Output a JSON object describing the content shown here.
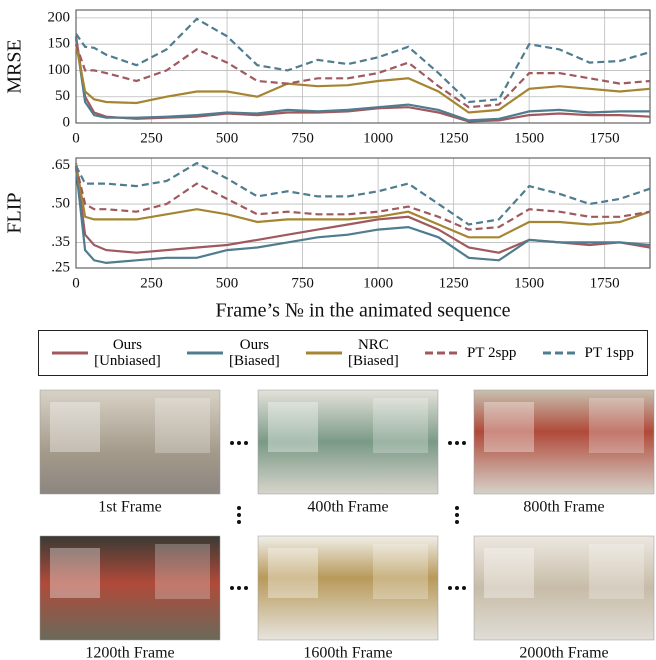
{
  "chart_data": [
    {
      "type": "line",
      "y_label": "MRSE",
      "xlim": [
        0,
        1900
      ],
      "ylim": [
        0,
        215
      ],
      "xticks": [
        0,
        250,
        500,
        750,
        1000,
        1250,
        1500,
        1750
      ],
      "yticks": [
        0,
        50,
        100,
        150,
        200
      ],
      "grid": true,
      "x": [
        0,
        30,
        60,
        100,
        200,
        300,
        400,
        500,
        600,
        700,
        800,
        900,
        1000,
        1100,
        1200,
        1300,
        1400,
        1500,
        1600,
        1700,
        1800,
        1900
      ],
      "series": [
        {
          "name": "Ours\n[Unbiased]",
          "color": "#a0595f",
          "dashed": false,
          "values": [
            165,
            50,
            20,
            12,
            8,
            10,
            12,
            18,
            15,
            20,
            20,
            22,
            28,
            30,
            20,
            3,
            5,
            15,
            18,
            15,
            15,
            12
          ]
        },
        {
          "name": "Ours\n[Biased]",
          "color": "#4f7c8f",
          "dashed": false,
          "values": [
            160,
            40,
            15,
            10,
            10,
            12,
            15,
            20,
            18,
            25,
            22,
            25,
            30,
            35,
            25,
            5,
            8,
            22,
            25,
            20,
            22,
            22
          ]
        },
        {
          "name": "NRC\n[Biased]",
          "color": "#a58532",
          "dashed": false,
          "values": [
            150,
            60,
            45,
            40,
            38,
            50,
            60,
            60,
            50,
            75,
            70,
            72,
            80,
            85,
            60,
            20,
            25,
            65,
            70,
            65,
            60,
            65
          ]
        },
        {
          "name": "PT 2spp",
          "color": "#a0595f",
          "dashed": true,
          "values": [
            150,
            100,
            100,
            95,
            80,
            100,
            140,
            115,
            80,
            75,
            85,
            85,
            95,
            115,
            70,
            30,
            35,
            95,
            95,
            85,
            75,
            80
          ]
        },
        {
          "name": "PT 1spp",
          "color": "#4f7c8f",
          "dashed": true,
          "values": [
            170,
            145,
            143,
            130,
            110,
            140,
            198,
            165,
            110,
            100,
            120,
            112,
            125,
            145,
            95,
            40,
            45,
            150,
            140,
            115,
            118,
            135
          ]
        }
      ]
    },
    {
      "type": "line",
      "y_label": "FLIP",
      "x_label": "Frame’s № in the animated sequence",
      "xlim": [
        0,
        1900
      ],
      "ylim": [
        0.25,
        0.68
      ],
      "xticks": [
        0,
        250,
        500,
        750,
        1000,
        1250,
        1500,
        1750
      ],
      "yticks": [
        {
          "value": 0.25,
          "label": ".25"
        },
        {
          "value": 0.35,
          "label": ".35"
        },
        {
          "value": 0.5,
          "label": ".50"
        },
        {
          "value": 0.65,
          "label": ".65"
        }
      ],
      "grid": true,
      "x": [
        0,
        30,
        60,
        100,
        200,
        300,
        400,
        500,
        600,
        700,
        800,
        900,
        1000,
        1100,
        1200,
        1300,
        1400,
        1500,
        1600,
        1700,
        1800,
        1900
      ],
      "series": [
        {
          "color": "#a0595f",
          "dashed": false,
          "values": [
            0.65,
            0.38,
            0.34,
            0.32,
            0.31,
            0.32,
            0.33,
            0.34,
            0.36,
            0.38,
            0.4,
            0.42,
            0.44,
            0.45,
            0.4,
            0.33,
            0.31,
            0.36,
            0.35,
            0.34,
            0.35,
            0.33
          ]
        },
        {
          "color": "#4f7c8f",
          "dashed": false,
          "values": [
            0.64,
            0.32,
            0.28,
            0.27,
            0.28,
            0.29,
            0.29,
            0.32,
            0.33,
            0.35,
            0.37,
            0.38,
            0.4,
            0.41,
            0.37,
            0.29,
            0.28,
            0.36,
            0.35,
            0.35,
            0.35,
            0.34
          ]
        },
        {
          "color": "#a58532",
          "dashed": false,
          "values": [
            0.66,
            0.45,
            0.44,
            0.44,
            0.44,
            0.46,
            0.48,
            0.46,
            0.43,
            0.44,
            0.44,
            0.44,
            0.45,
            0.47,
            0.42,
            0.37,
            0.37,
            0.43,
            0.43,
            0.42,
            0.43,
            0.47
          ]
        },
        {
          "color": "#a0595f",
          "dashed": true,
          "values": [
            0.65,
            0.5,
            0.48,
            0.48,
            0.47,
            0.5,
            0.58,
            0.52,
            0.46,
            0.47,
            0.46,
            0.46,
            0.47,
            0.49,
            0.45,
            0.4,
            0.41,
            0.48,
            0.47,
            0.45,
            0.45,
            0.47
          ]
        },
        {
          "color": "#4f7c8f",
          "dashed": true,
          "values": [
            0.65,
            0.58,
            0.58,
            0.58,
            0.57,
            0.59,
            0.66,
            0.6,
            0.53,
            0.55,
            0.53,
            0.53,
            0.55,
            0.58,
            0.5,
            0.42,
            0.44,
            0.57,
            0.54,
            0.5,
            0.52,
            0.56
          ]
        }
      ]
    }
  ],
  "frames": [
    {
      "caption": "1st Frame"
    },
    {
      "caption": "400th Frame"
    },
    {
      "caption": "800th Frame"
    },
    {
      "caption": "1200th Frame"
    },
    {
      "caption": "1600th Frame"
    },
    {
      "caption": "2000th Frame"
    }
  ]
}
